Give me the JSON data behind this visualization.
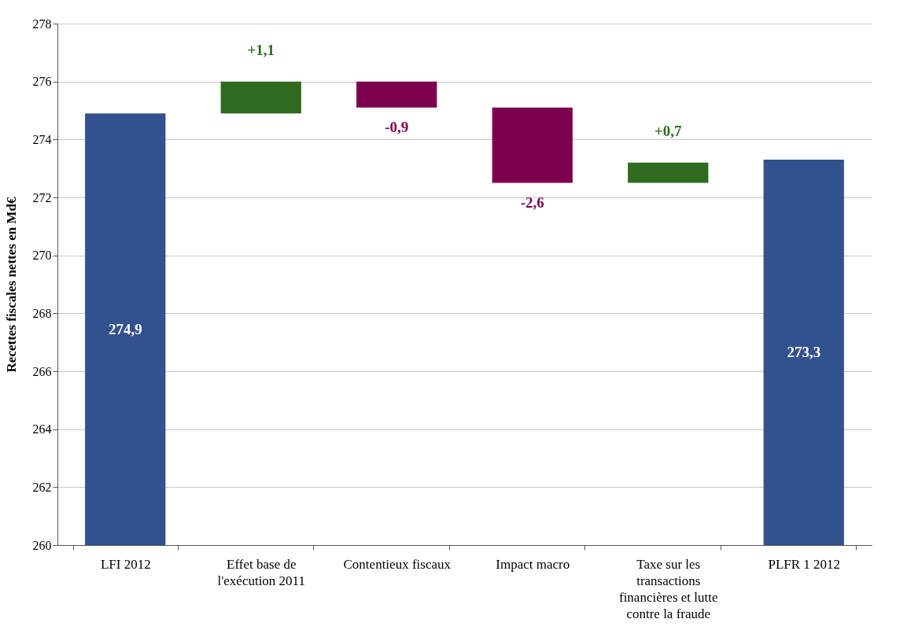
{
  "chart_data": {
    "type": "bar",
    "ylabel": "Recettes fiscales nettes en Md€",
    "categories": [
      "LFI 2012",
      "Effet base de l'exécution 2011",
      "Contentieux fiscaux",
      "Impact macro",
      "Taxe sur les transactions financières et lutte contre la fraude",
      "PLFR 1 2012"
    ],
    "values": [
      274.9,
      1.1,
      -0.9,
      -2.6,
      0.7,
      273.3
    ],
    "base": [
      null,
      274.9,
      276.0,
      275.1,
      272.5,
      null
    ],
    "colors": [
      "#33508f",
      "#2e6b1f",
      "#7d004f",
      "#7d004f",
      "#2e6b1f",
      "#33508f"
    ],
    "value_labels": [
      "274,9",
      "+1,1",
      "-0,9",
      "-2,6",
      "+0,7",
      "273,3"
    ],
    "ylim": [
      260,
      278
    ],
    "yticks": [
      260,
      262,
      264,
      266,
      268,
      270,
      272,
      274,
      276,
      278
    ],
    "grid": "y"
  }
}
